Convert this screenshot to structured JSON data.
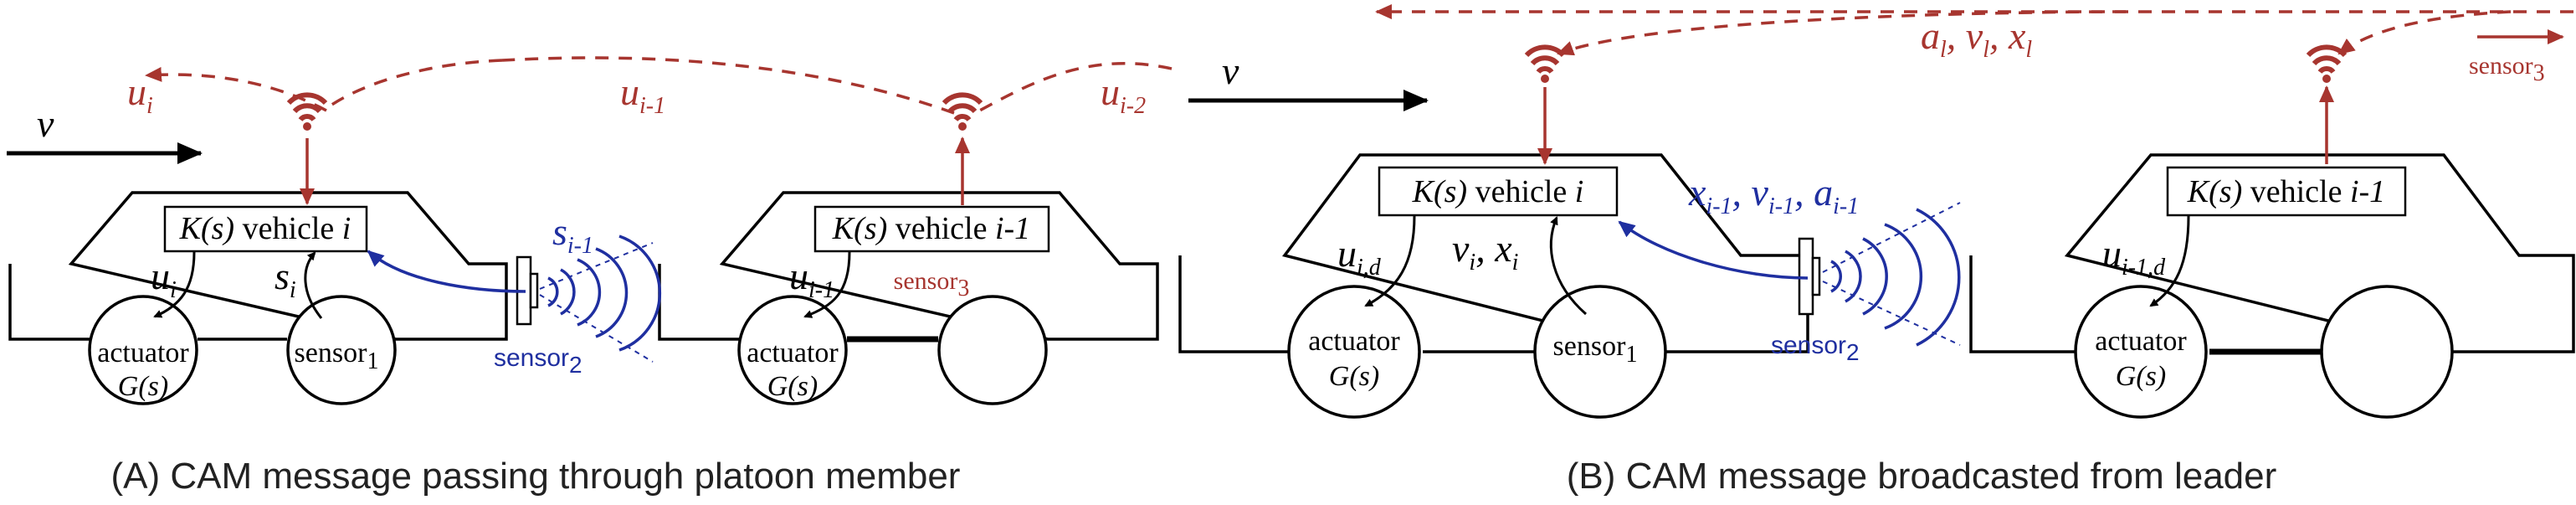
{
  "captions": {
    "a": "(A) CAM message passing through platoon member",
    "b": "(B) CAM message broadcasted from leader"
  },
  "velocity_symbol": "v",
  "panel_a": {
    "controller_i": {
      "k": "K(s)",
      "word": "vehicle",
      "idx": "i"
    },
    "controller_prev": {
      "k": "K(s)",
      "word": "vehicle",
      "idx": "i-1"
    },
    "actuator": "actuator",
    "actuator_tf": "G(s)",
    "sensor1": {
      "base": "sensor",
      "sub": "1"
    },
    "sensor2": {
      "base": "sensor",
      "sub": "2"
    },
    "sensor3": {
      "base": "sensor",
      "sub": "3"
    },
    "u_i": {
      "base": "u",
      "sub": "i"
    },
    "s_i": {
      "base": "s",
      "sub": "i"
    },
    "s_prev": {
      "base": "s",
      "sub": "i-1"
    },
    "u_prev": {
      "base": "u",
      "sub": "i-1"
    },
    "msg_u_i": {
      "base": "u",
      "sub": "i"
    },
    "msg_u_prev": {
      "base": "u",
      "sub": "i-1"
    },
    "msg_u_prev2": {
      "base": "u",
      "sub": "i-2"
    }
  },
  "panel_b": {
    "controller_i": {
      "k": "K(s)",
      "word": "vehicle",
      "idx": "i"
    },
    "controller_prev": {
      "k": "K(s)",
      "word": "vehicle",
      "idx": "i-1"
    },
    "actuator": "actuator",
    "actuator_tf": "G(s)",
    "sensor1": {
      "base": "sensor",
      "sub": "1"
    },
    "sensor2": {
      "base": "sensor",
      "sub": "2"
    },
    "sensor3": {
      "base": "sensor",
      "sub": "3"
    },
    "u_id": {
      "base": "u",
      "sub": "i,d"
    },
    "u_prevd": {
      "base": "u",
      "sub": "i-1,d"
    },
    "v_i": {
      "base": "v",
      "sub": "i"
    },
    "x_i": {
      "base": "x",
      "sub": "i"
    },
    "x_prev": {
      "base": "x",
      "sub": "i-1"
    },
    "v_prev": {
      "base": "v",
      "sub": "i-1"
    },
    "a_prev": {
      "base": "a",
      "sub": "i-1"
    },
    "a_l": {
      "base": "a",
      "sub": "l"
    },
    "v_l": {
      "base": "v",
      "sub": "l"
    },
    "x_l": {
      "base": "x",
      "sub": "l"
    }
  },
  "colors": {
    "message": "#A7352F",
    "sensor": "#1F2FA0",
    "lines": "#000000"
  }
}
